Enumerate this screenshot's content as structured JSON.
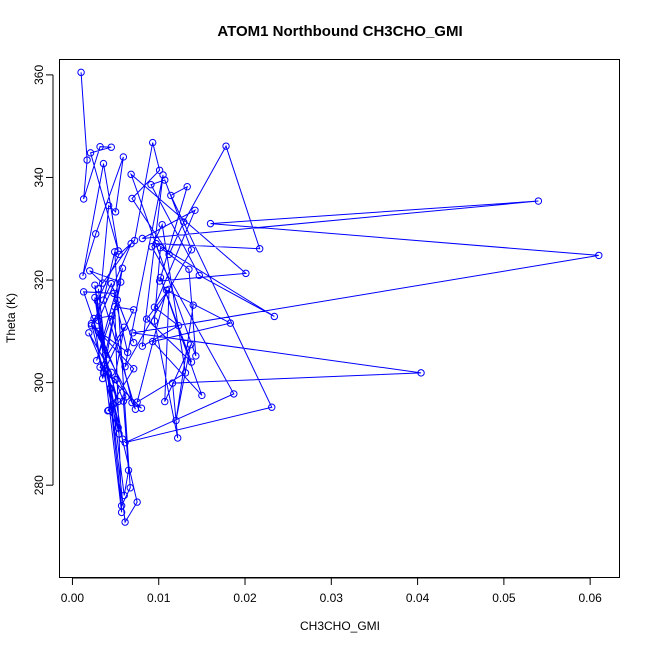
{
  "chart_data": {
    "type": "line",
    "title": "ATOM1 Northbound CH3CHO_GMI",
    "xlabel": "CH3CHO_GMI",
    "ylabel": "Theta (K)",
    "xlim": [
      -0.0015,
      0.0634
    ],
    "ylim": [
      262,
      363
    ],
    "x_ticks": [
      "0.00",
      "0.01",
      "0.02",
      "0.03",
      "0.04",
      "0.05",
      "0.06"
    ],
    "y_ticks": [
      "280",
      "300",
      "320",
      "340",
      "360"
    ],
    "grid": false,
    "line_color": "#0000ff",
    "marker": "open-circle",
    "series": [
      {
        "x": [
          0.001,
          0.0017,
          0.0013,
          0.0032,
          0.0045,
          0.0021,
          0.0053,
          0.0036,
          0.0012,
          0.0027,
          0.0059,
          0.005,
          0.0042,
          0.003,
          0.0068,
          0.0035,
          0.002,
          0.0056,
          0.0038,
          0.0013,
          0.0048,
          0.0064,
          0.0022,
          0.0045,
          0.0071,
          0.0052,
          0.0028,
          0.0058,
          0.0035,
          0.0025,
          0.0046,
          0.0069,
          0.008,
          0.0032,
          0.006,
          0.0042,
          0.0053,
          0.0026,
          0.0038,
          0.0058,
          0.0045,
          0.0019,
          0.0053,
          0.003,
          0.0071,
          0.0041,
          0.0062,
          0.0034,
          0.0054,
          0.0022,
          0.0073,
          0.0036,
          0.0049,
          0.0067,
          0.0057,
          0.003,
          0.0061,
          0.0075,
          0.0044,
          0.0026,
          0.0057,
          0.0049,
          0.0071,
          0.0036,
          0.005,
          0.0059,
          0.0065,
          0.006,
          0.0047,
          0.0029,
          0.0054,
          0.0072,
          0.0093,
          0.0101,
          0.0069,
          0.0112,
          0.0129,
          0.0178,
          0.0217,
          0.0097,
          0.0234,
          0.0147,
          0.0091,
          0.0107,
          0.0138,
          0.0061,
          0.0105,
          0.0081,
          0.0123,
          0.0095,
          0.0142,
          0.0081,
          0.054,
          0.016,
          0.061,
          0.007,
          0.0404,
          0.0116,
          0.0122,
          0.0095,
          0.0102,
          0.0135,
          0.0143,
          0.0068,
          0.0201,
          0.0101,
          0.0133,
          0.0114,
          0.0231,
          0.0061,
          0.0187,
          0.0092,
          0.0104,
          0.0131,
          0.0075,
          0.0109,
          0.0183,
          0.0093,
          0.015,
          0.0102,
          0.0138,
          0.0086,
          0.0112,
          0.0107,
          0.0137,
          0.012,
          0.014
        ],
        "y": [
          360.5,
          343.4,
          335.8,
          346.0,
          345.9,
          344.8,
          325.7,
          342.7,
          320.8,
          329.0,
          344.0,
          333.3,
          334.5,
          312.1,
          327.1,
          319.4,
          321.8,
          319.6,
          305.4,
          317.7,
          317.4,
          305.9,
          311.1,
          319.3,
          307.8,
          316.1,
          304.3,
          322.3,
          300.8,
          312.5,
          313.0,
          296.1,
          295.0,
          303.0,
          310.8,
          294.6,
          291.2,
          316.6,
          302.7,
          289.0,
          302.0,
          309.7,
          296.3,
          310.0,
          302.7,
          294.5,
          297.2,
          308.8,
          290.0,
          311.5,
          294.8,
          316.1,
          325.5,
          279.5,
          276.0,
          318.3,
          272.8,
          276.7,
          298.9,
          319.0,
          274.7,
          314.8,
          314.2,
          301.9,
          300.6,
          296.4,
          282.9,
          278.0,
          295.7,
          315.9,
          325.0,
          327.7,
          346.8,
          341.4,
          335.9,
          325.0,
          331.3,
          346.1,
          326.1,
          327.1,
          312.9,
          320.9,
          338.6,
          339.5,
          325.9,
          303.1,
          340.5,
          307.1,
          311.1,
          314.7,
          333.6,
          328.1,
          335.4,
          331.0,
          324.8,
          309.7,
          301.9,
          299.9,
          289.2,
          312.0,
          326.3,
          322.1,
          305.2,
          340.6,
          321.3,
          319.8,
          338.2,
          336.5,
          295.2,
          288.3,
          297.8,
          326.5,
          330.8,
          301.9,
          296.2,
          318.0,
          311.6,
          308.0,
          297.5,
          320.5,
          304.0,
          312.4,
          318.2,
          296.3,
          307.4,
          292.6,
          315.1
        ]
      }
    ]
  }
}
